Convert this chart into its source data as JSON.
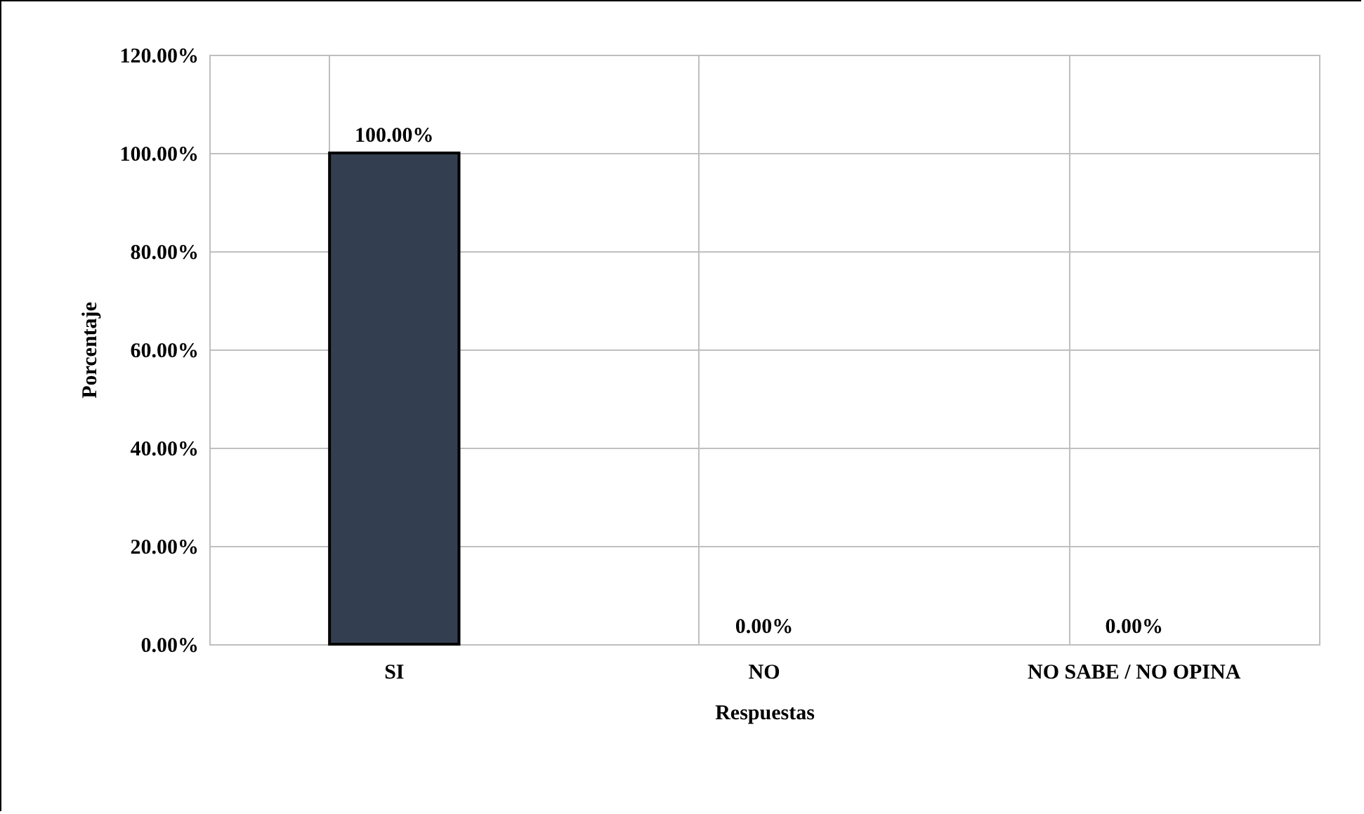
{
  "chart_data": {
    "type": "bar",
    "xlabel": "Respuestas",
    "ylabel": "Porcentaje",
    "categories": [
      "SI",
      "NO",
      "NO SABE / NO OPINA"
    ],
    "values": [
      100,
      0,
      0
    ],
    "color": "#333f50",
    "value_labels": [
      "100.00%",
      "0.00%",
      "0.00%"
    ],
    "ylim": [
      0,
      120
    ],
    "yticks": [
      {
        "value": 0,
        "label": "0.00%"
      },
      {
        "value": 20,
        "label": "20.00%"
      },
      {
        "value": 40,
        "label": "40.00%"
      },
      {
        "value": 60,
        "label": "60.00%"
      },
      {
        "value": 80,
        "label": "80.00%"
      },
      {
        "value": 100,
        "label": "100.00%"
      },
      {
        "value": 120,
        "label": "120.00%"
      }
    ],
    "grid": true
  }
}
